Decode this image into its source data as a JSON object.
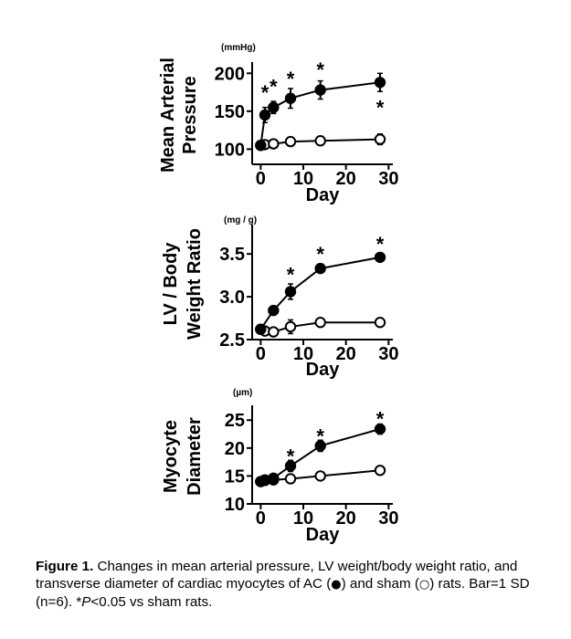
{
  "figure": {
    "chart_data": [
      {
        "type": "line",
        "ylabel_lines": [
          "Mean Arterial",
          "Pressure"
        ],
        "unit": "(mmHg)",
        "xlabel": "Day",
        "x_ticks": [
          0,
          10,
          20,
          30
        ],
        "y_ticks": [
          100,
          150,
          200
        ],
        "xlim": [
          -2,
          31
        ],
        "ylim": [
          80,
          210
        ],
        "series": [
          {
            "name": "AC",
            "marker": "filled",
            "x": [
              0,
              1,
              3,
              7,
              14,
              28
            ],
            "y": [
              105,
              145,
              155,
              167,
              178,
              188
            ],
            "sd": [
              3,
              10,
              8,
              13,
              12,
              12
            ]
          },
          {
            "name": "sham",
            "marker": "open",
            "x": [
              0,
              1,
              3,
              7,
              14,
              28
            ],
            "y": [
              105,
              106,
              107,
              110,
              111,
              113
            ],
            "sd": [
              3,
              4,
              4,
              5,
              6,
              7
            ]
          }
        ],
        "significance": [
          {
            "x": 1,
            "y": 175,
            "label": "*"
          },
          {
            "x": 3,
            "y": 183,
            "label": "*"
          },
          {
            "x": 7,
            "y": 193,
            "label": "*"
          },
          {
            "x": 14,
            "y": 205,
            "label": "*"
          },
          {
            "x": 28,
            "y": 155,
            "label": "*"
          }
        ]
      },
      {
        "type": "line",
        "ylabel_lines": [
          "LV / Body",
          "Weight Ratio"
        ],
        "unit": "(mg / g)",
        "xlabel": "Day",
        "x_ticks": [
          0,
          10,
          20,
          30
        ],
        "y_ticks": [
          "2.5",
          "3.0",
          "3.5"
        ],
        "xlim": [
          -2,
          31
        ],
        "ylim": [
          2.5,
          3.8
        ],
        "series": [
          {
            "name": "AC",
            "marker": "filled",
            "x": [
              0,
              3,
              7,
              14,
              28
            ],
            "y": [
              2.62,
              2.84,
              3.06,
              3.33,
              3.46
            ],
            "sd": [
              0.03,
              0.05,
              0.09,
              0.05,
              0.04
            ]
          },
          {
            "name": "sham",
            "marker": "open",
            "x": [
              0,
              1,
              3,
              7,
              14,
              28
            ],
            "y": [
              2.62,
              2.6,
              2.59,
              2.65,
              2.7,
              2.7
            ],
            "sd": [
              0.03,
              0.04,
              0.03,
              0.08,
              0.03,
              0.03
            ]
          }
        ],
        "significance": [
          {
            "x": 7,
            "y": 3.26,
            "label": "*"
          },
          {
            "x": 14,
            "y": 3.5,
            "label": "*"
          },
          {
            "x": 28,
            "y": 3.62,
            "label": "*"
          }
        ]
      },
      {
        "type": "line",
        "ylabel_lines": [
          "Myocyte",
          "Diameter"
        ],
        "unit": "(µm)",
        "xlabel": "Day",
        "x_ticks": [
          0,
          10,
          20,
          30
        ],
        "y_ticks": [
          10,
          15,
          20,
          25
        ],
        "xlim": [
          -2,
          31
        ],
        "ylim": [
          10,
          27
        ],
        "series": [
          {
            "name": "AC",
            "marker": "filled",
            "x": [
              0,
              1,
              3,
              7,
              14,
              28
            ],
            "y": [
              14.0,
              14.3,
              14.6,
              16.8,
              20.4,
              23.4
            ],
            "sd": [
              0.6,
              0.6,
              0.7,
              1.0,
              1.0,
              0.9
            ]
          },
          {
            "name": "sham",
            "marker": "open",
            "x": [
              0,
              1,
              3,
              7,
              14,
              28
            ],
            "y": [
              14.0,
              14.2,
              14.3,
              14.5,
              15.0,
              16.0
            ],
            "sd": [
              0.6,
              0.5,
              0.5,
              0.6,
              0.6,
              0.8
            ]
          }
        ],
        "significance": [
          {
            "x": 7,
            "y": 18.6,
            "label": "*"
          },
          {
            "x": 14,
            "y": 22.2,
            "label": "*"
          },
          {
            "x": 28,
            "y": 25.3,
            "label": "*"
          }
        ]
      }
    ]
  },
  "caption": {
    "label": "Figure 1.",
    "text1": " Changes in mean arterial pressure, LV weight/body weight ratio, and transverse diameter of cardiac myocytes of AC (",
    "filled_symbol": "●",
    "text2": ") and sham (",
    "open_symbol": "○",
    "text3": ") rats. Bar=1 SD (n=6). *",
    "p_italic": "P",
    "text4": "<0.05 vs sham rats."
  }
}
